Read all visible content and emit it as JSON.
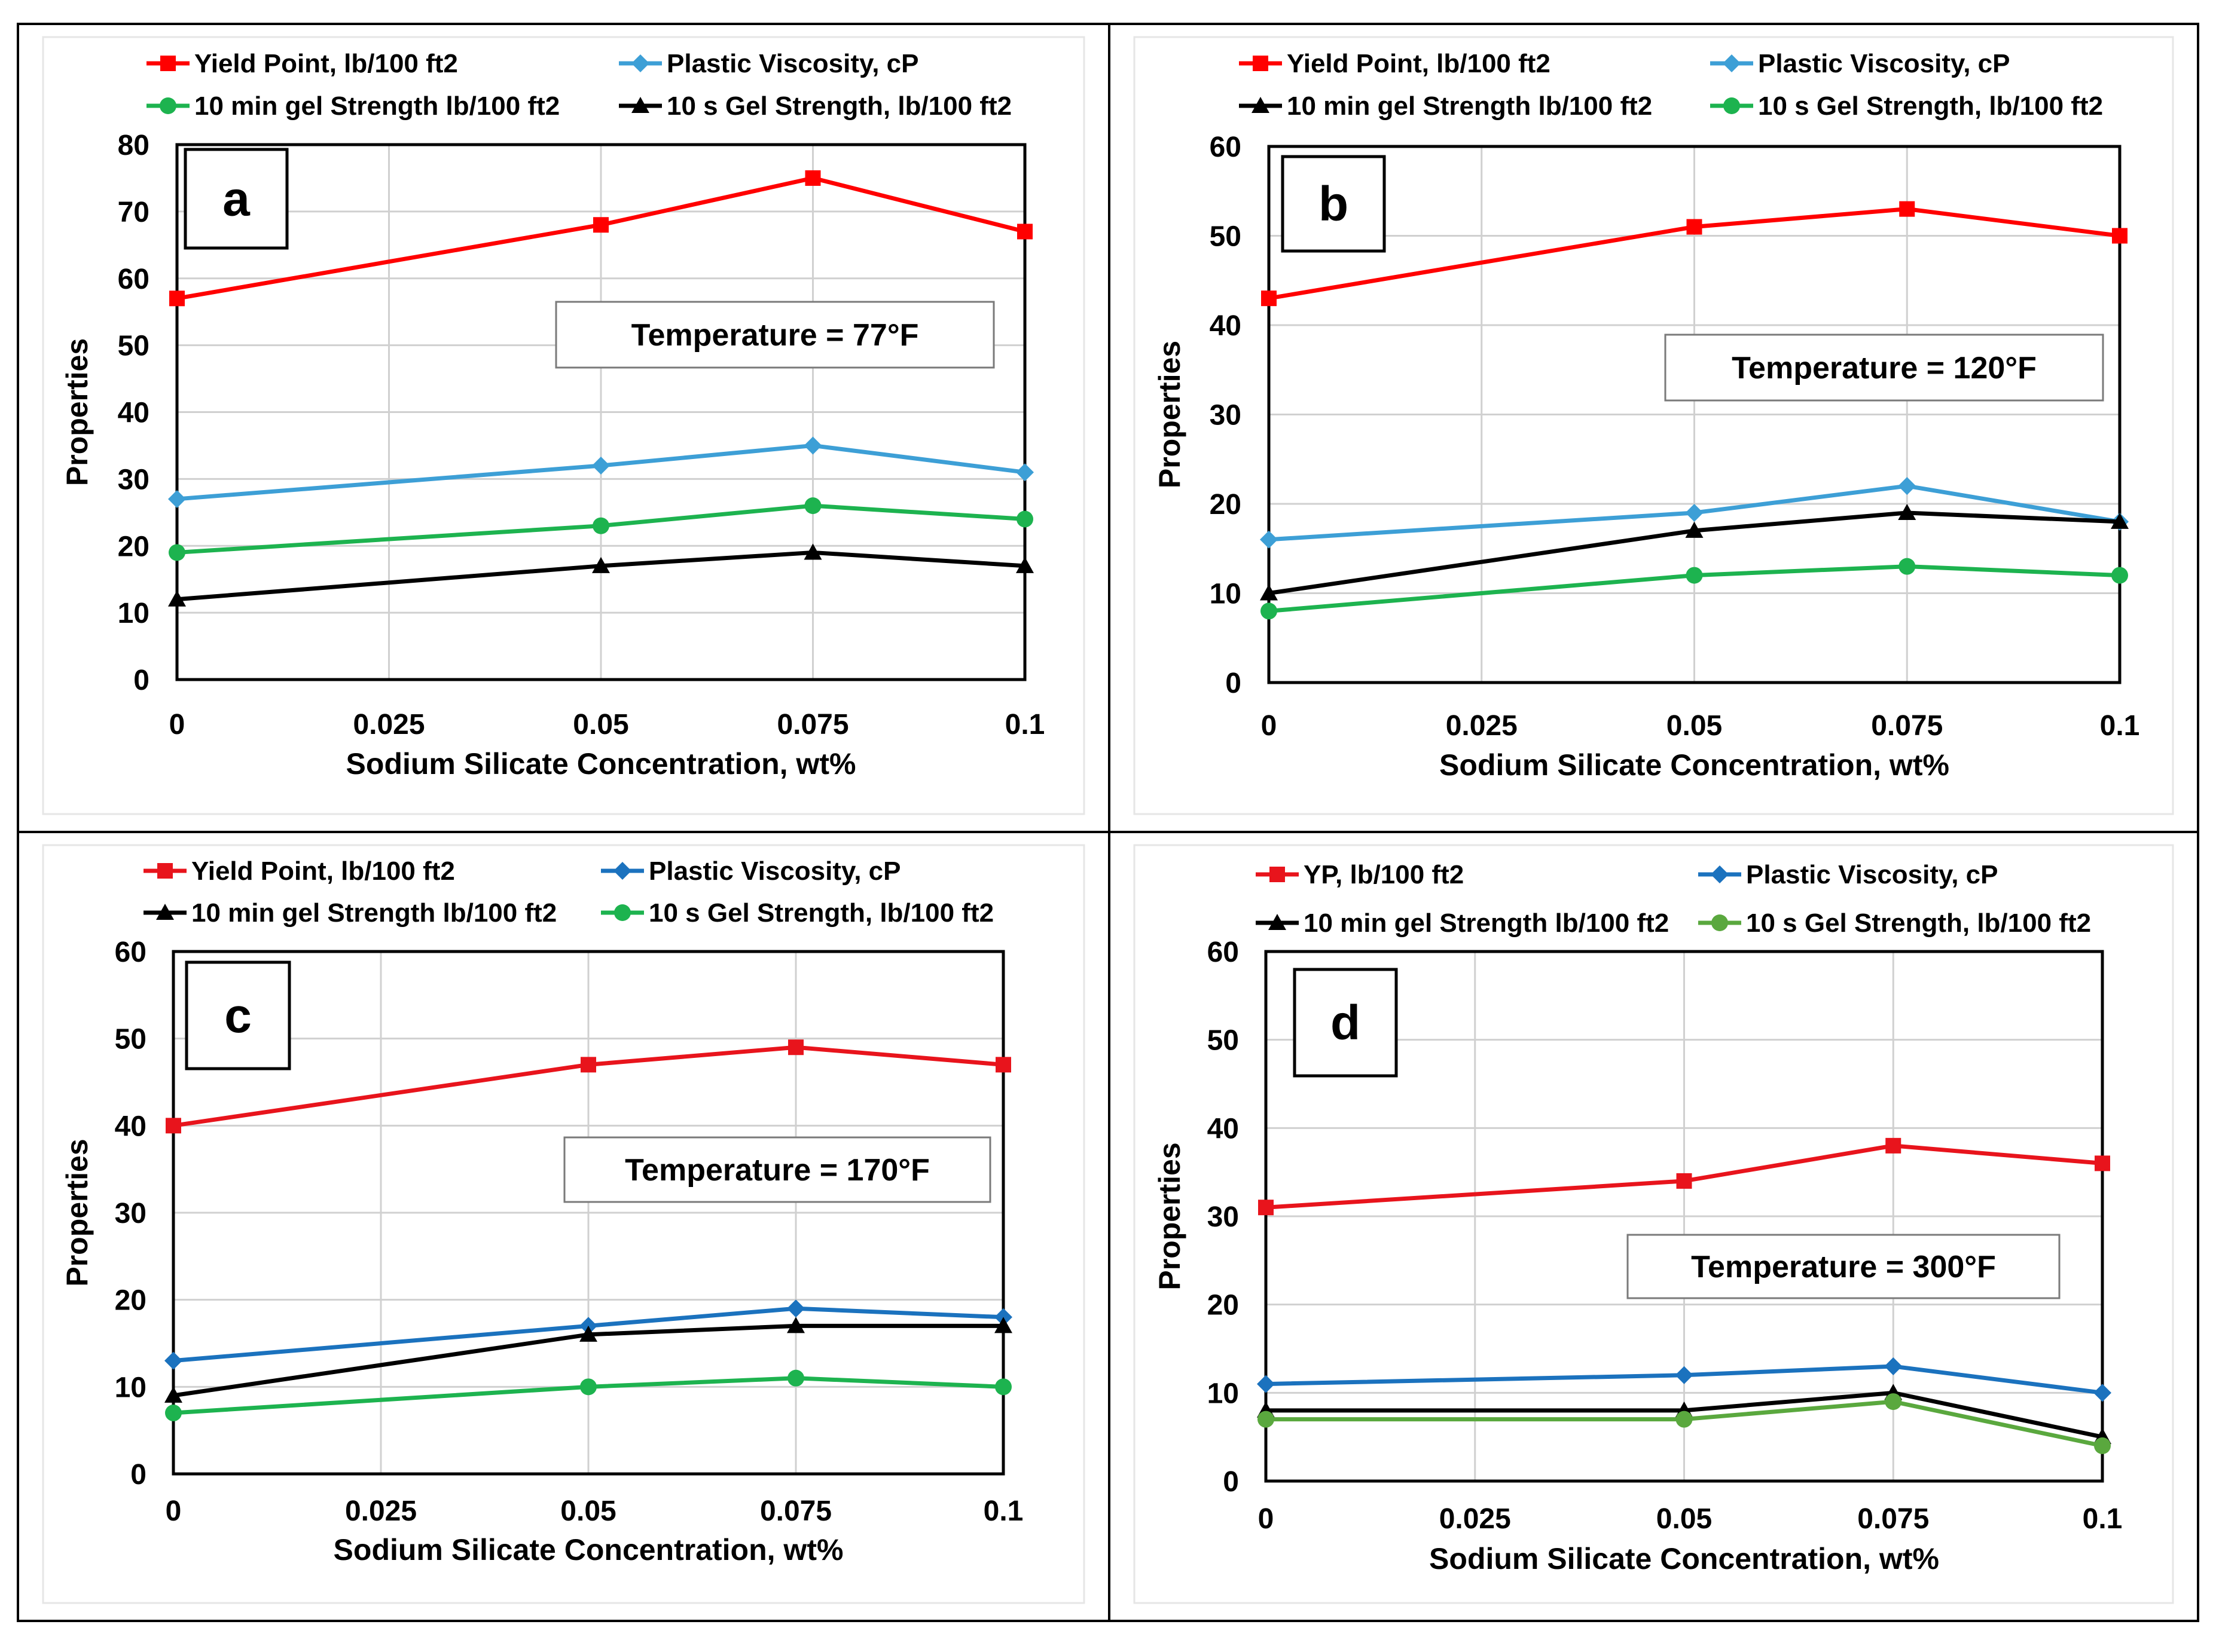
{
  "chart_data": [
    {
      "panel": "a",
      "type": "line",
      "annotation": "Temperature = 77°F",
      "xlabel": "Sodium Silicate Concentration, wt%",
      "ylabel": "Properties",
      "x": [
        0,
        0.05,
        0.075,
        0.1
      ],
      "xticks": [
        "0",
        "0.025",
        "0.05",
        "0.075",
        "0.1"
      ],
      "xlim": [
        0,
        0.1
      ],
      "yticks": [
        "0",
        "10",
        "20",
        "30",
        "40",
        "50",
        "60",
        "70",
        "80"
      ],
      "ylim": [
        0,
        80
      ],
      "grid": true,
      "legend_order": [
        "Yield Point, lb/100 ft2",
        "Plastic Viscosity, cP",
        "10 min gel Strength lb/100 ft2",
        "10 s Gel Strength, lb/100 ft2"
      ],
      "series": [
        {
          "name": "Yield Point, lb/100 ft2",
          "color": "#ff0000",
          "marker": "square",
          "values": [
            57,
            68,
            75,
            67
          ]
        },
        {
          "name": "Plastic Viscosity, cP",
          "color": "#3d9fd6",
          "marker": "diamond",
          "values": [
            27,
            32,
            35,
            31
          ]
        },
        {
          "name": "10 min gel Strength lb/100 ft2",
          "color": "#1db34f",
          "marker": "circle",
          "values": [
            19,
            23,
            26,
            24
          ]
        },
        {
          "name": "10 s Gel Strength, lb/100 ft2",
          "color": "#000000",
          "marker": "triangle",
          "values": [
            12,
            17,
            19,
            17
          ]
        }
      ]
    },
    {
      "panel": "b",
      "type": "line",
      "annotation": "Temperature = 120°F",
      "xlabel": "Sodium Silicate Concentration, wt%",
      "ylabel": "Properties",
      "x": [
        0,
        0.05,
        0.075,
        0.1
      ],
      "xticks": [
        "0",
        "0.025",
        "0.05",
        "0.075",
        "0.1"
      ],
      "xlim": [
        0,
        0.1
      ],
      "yticks": [
        "0",
        "10",
        "20",
        "30",
        "40",
        "50",
        "60"
      ],
      "ylim": [
        0,
        60
      ],
      "grid": true,
      "legend_order": [
        "Yield Point, lb/100 ft2",
        "Plastic Viscosity, cP",
        "10 min gel Strength lb/100 ft2",
        "10 s Gel Strength, lb/100 ft2"
      ],
      "series": [
        {
          "name": "Yield Point, lb/100 ft2",
          "color": "#ff0000",
          "marker": "square",
          "values": [
            43,
            51,
            53,
            50
          ]
        },
        {
          "name": "Plastic Viscosity, cP",
          "color": "#3d9fd6",
          "marker": "diamond",
          "values": [
            16,
            19,
            22,
            18
          ]
        },
        {
          "name": "10 min gel Strength lb/100 ft2",
          "color": "#000000",
          "marker": "triangle",
          "values": [
            10,
            17,
            19,
            18
          ]
        },
        {
          "name": "10 s Gel Strength, lb/100 ft2",
          "color": "#1db34f",
          "marker": "circle",
          "values": [
            8,
            12,
            13,
            12
          ]
        }
      ]
    },
    {
      "panel": "c",
      "type": "line",
      "annotation": "Temperature = 170°F",
      "xlabel": "Sodium Silicate Concentration, wt%",
      "ylabel": "Properties",
      "x": [
        0,
        0.05,
        0.075,
        0.1
      ],
      "xticks": [
        "0",
        "0.025",
        "0.05",
        "0.075",
        "0.1"
      ],
      "xlim": [
        0,
        0.1
      ],
      "yticks": [
        "0",
        "10",
        "20",
        "30",
        "40",
        "50",
        "60"
      ],
      "ylim": [
        0,
        60
      ],
      "grid": true,
      "legend_order": [
        "Yield Point, lb/100 ft2",
        "Plastic Viscosity, cP",
        "10 min gel Strength lb/100 ft2",
        "10 s Gel Strength, lb/100 ft2"
      ],
      "series": [
        {
          "name": "Yield Point, lb/100 ft2",
          "color": "#e8141c",
          "marker": "square",
          "values": [
            40,
            47,
            49,
            47
          ]
        },
        {
          "name": "Plastic Viscosity, cP",
          "color": "#1b72be",
          "marker": "diamond",
          "values": [
            13,
            17,
            19,
            18
          ]
        },
        {
          "name": "10 min gel Strength lb/100 ft2",
          "color": "#000000",
          "marker": "triangle",
          "values": [
            9,
            16,
            17,
            17
          ]
        },
        {
          "name": "10 s Gel Strength, lb/100 ft2",
          "color": "#1db34f",
          "marker": "circle",
          "values": [
            7,
            10,
            11,
            10
          ]
        }
      ]
    },
    {
      "panel": "d",
      "type": "line",
      "annotation": "Temperature = 300°F",
      "xlabel": "Sodium Silicate Concentration, wt%",
      "ylabel": "Properties",
      "x": [
        0,
        0.05,
        0.075,
        0.1
      ],
      "xticks": [
        "0",
        "0.025",
        "0.05",
        "0.075",
        "0.1"
      ],
      "xlim": [
        0,
        0.1
      ],
      "yticks": [
        "0",
        "10",
        "20",
        "30",
        "40",
        "50",
        "60"
      ],
      "ylim": [
        0,
        60
      ],
      "grid": true,
      "legend_order": [
        "YP, lb/100 ft2",
        "Plastic Viscosity, cP",
        "10 min gel Strength lb/100 ft2",
        "10 s Gel Strength, lb/100 ft2"
      ],
      "series": [
        {
          "name": "YP, lb/100 ft2",
          "color": "#e8141c",
          "marker": "square",
          "values": [
            31,
            34,
            38,
            36
          ]
        },
        {
          "name": "Plastic Viscosity, cP",
          "color": "#1b72be",
          "marker": "diamond",
          "values": [
            11,
            12,
            13,
            10
          ]
        },
        {
          "name": "10 min gel Strength lb/100 ft2",
          "color": "#000000",
          "marker": "triangle",
          "values": [
            8,
            8,
            10,
            5
          ]
        },
        {
          "name": "10 s Gel Strength, lb/100 ft2",
          "color": "#5aa83e",
          "marker": "circle",
          "values": [
            7,
            7,
            9,
            4
          ]
        }
      ]
    }
  ]
}
